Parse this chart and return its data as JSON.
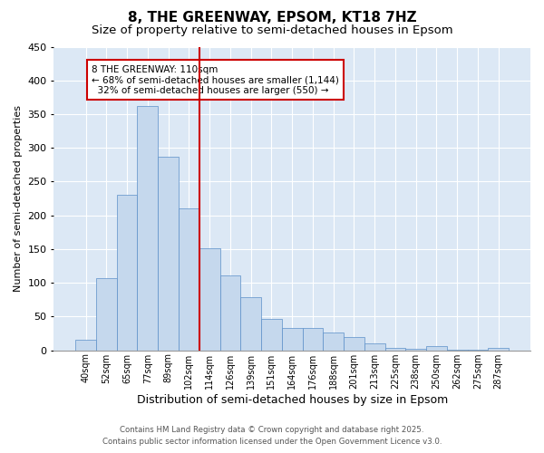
{
  "title": "8, THE GREENWAY, EPSOM, KT18 7HZ",
  "subtitle": "Size of property relative to semi-detached houses in Epsom",
  "xlabel": "Distribution of semi-detached houses by size in Epsom",
  "ylabel": "Number of semi-detached properties",
  "bar_labels": [
    "40sqm",
    "52sqm",
    "65sqm",
    "77sqm",
    "89sqm",
    "102sqm",
    "114sqm",
    "126sqm",
    "139sqm",
    "151sqm",
    "164sqm",
    "176sqm",
    "188sqm",
    "201sqm",
    "213sqm",
    "225sqm",
    "238sqm",
    "250sqm",
    "262sqm",
    "275sqm",
    "287sqm"
  ],
  "bar_values": [
    15,
    107,
    230,
    362,
    287,
    211,
    151,
    111,
    79,
    46,
    33,
    33,
    27,
    20,
    10,
    4,
    2,
    6,
    1,
    1,
    3
  ],
  "bar_color": "#c5d8ed",
  "bar_edge_color": "#5b8fc9",
  "vline_color": "#cc0000",
  "annotation_text": "8 THE GREENWAY: 110sqm\n← 68% of semi-detached houses are smaller (1,144)\n  32% of semi-detached houses are larger (550) →",
  "annotation_box_color": "#cc0000",
  "ylim": [
    0,
    450
  ],
  "yticks": [
    0,
    50,
    100,
    150,
    200,
    250,
    300,
    350,
    400,
    450
  ],
  "footer_line1": "Contains HM Land Registry data © Crown copyright and database right 2025.",
  "footer_line2": "Contains public sector information licensed under the Open Government Licence v3.0.",
  "bg_color": "#dce8f5",
  "title_fontsize": 11,
  "subtitle_fontsize": 9.5
}
